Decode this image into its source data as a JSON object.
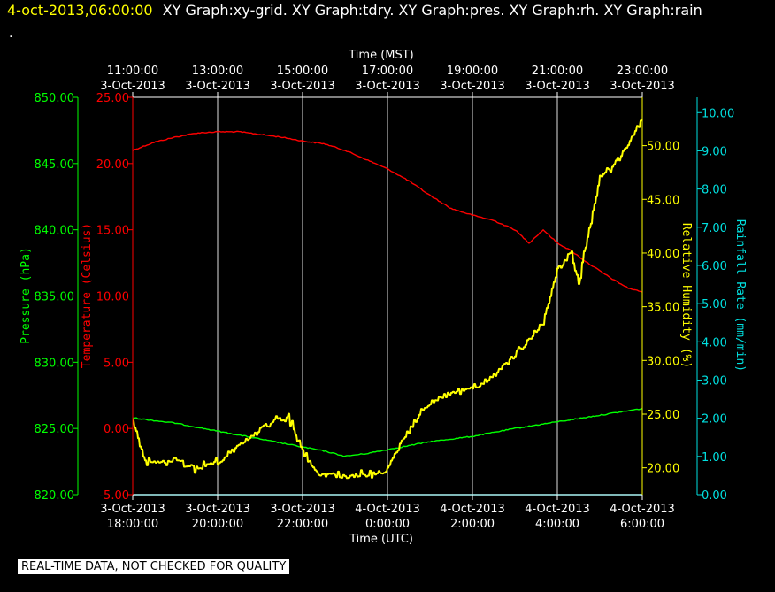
{
  "header": {
    "timestamp": "4-oct-2013,06:00:00",
    "graph_list": "XY Graph:xy-grid.  XY Graph:tdry.  XY Graph:pres.  XY Graph:rh.  XY Graph:rain",
    "dot": "."
  },
  "footer_note": "REAL-TIME DATA, NOT CHECKED FOR QUALITY",
  "colors": {
    "pressure": "#00ff00",
    "temperature": "#ff0000",
    "humidity": "#ffff00",
    "rain": "#00e0e0",
    "grid": "#e0e0e0",
    "text": "#ffffff"
  },
  "chart_data": {
    "type": "line",
    "grid": true,
    "x_top": {
      "title": "Time (MST)",
      "ticks": [
        {
          "time": "11:00:00",
          "date": "3-Oct-2013"
        },
        {
          "time": "13:00:00",
          "date": "3-Oct-2013"
        },
        {
          "time": "15:00:00",
          "date": "3-Oct-2013"
        },
        {
          "time": "17:00:00",
          "date": "3-Oct-2013"
        },
        {
          "time": "19:00:00",
          "date": "3-Oct-2013"
        },
        {
          "time": "21:00:00",
          "date": "3-Oct-2013"
        },
        {
          "time": "23:00:00",
          "date": "3-Oct-2013"
        }
      ]
    },
    "x_bottom": {
      "title": "Time (UTC)",
      "range": [
        "2013-10-03 18:00",
        "2013-10-04 06:00"
      ],
      "ticks": [
        {
          "date": "3-Oct-2013",
          "time": "18:00:00"
        },
        {
          "date": "3-Oct-2013",
          "time": "20:00:00"
        },
        {
          "date": "3-Oct-2013",
          "time": "22:00:00"
        },
        {
          "date": "4-Oct-2013",
          "time": "0:00:00"
        },
        {
          "date": "4-Oct-2013",
          "time": "2:00:00"
        },
        {
          "date": "4-Oct-2013",
          "time": "4:00:00"
        },
        {
          "date": "4-Oct-2013",
          "time": "6:00:00"
        }
      ]
    },
    "axes": {
      "pressure": {
        "label": "Pressure (hPa)",
        "range": [
          820,
          850
        ],
        "ticks": [
          "820.00",
          "825.00",
          "830.00",
          "835.00",
          "840.00",
          "845.00",
          "850.00"
        ]
      },
      "temperature": {
        "label": "Temperature (Celsius)",
        "range": [
          -5,
          25
        ],
        "ticks": [
          "-5.00",
          "0.00",
          "5.00",
          "10.00",
          "15.00",
          "20.00",
          "25.00"
        ]
      },
      "humidity": {
        "label": "Relative Humidity (%)",
        "range": [
          17.5,
          54.5
        ],
        "ticks": [
          "20.00",
          "25.00",
          "30.00",
          "35.00",
          "40.00",
          "45.00",
          "50.00"
        ]
      },
      "rain": {
        "label": "Rainfall Rate (mm/min)",
        "range": [
          0,
          10.4
        ],
        "ticks": [
          "0.00",
          "1.00",
          "2.00",
          "3.00",
          "4.00",
          "5.00",
          "6.00",
          "7.00",
          "8.00",
          "9.00",
          "10.00"
        ]
      }
    },
    "series": [
      {
        "name": "Temperature (Celsius)",
        "axis": "temperature",
        "style": "noisy",
        "x": [
          "2013-10-03 18:00",
          "2013-10-03 18:30",
          "2013-10-03 19:00",
          "2013-10-03 19:30",
          "2013-10-03 20:00",
          "2013-10-03 20:30",
          "2013-10-03 21:00",
          "2013-10-03 21:30",
          "2013-10-03 22:00",
          "2013-10-03 22:30",
          "2013-10-03 23:00",
          "2013-10-03 23:30",
          "2013-10-04 00:00",
          "2013-10-04 00:30",
          "2013-10-04 01:00",
          "2013-10-04 01:30",
          "2013-10-04 02:00",
          "2013-10-04 02:30",
          "2013-10-04 03:00",
          "2013-10-04 03:20",
          "2013-10-04 03:40",
          "2013-10-04 04:00",
          "2013-10-04 04:20",
          "2013-10-04 04:40",
          "2013-10-04 05:00",
          "2013-10-04 05:20",
          "2013-10-04 05:40",
          "2013-10-04 06:00"
        ],
        "values": [
          21.0,
          21.6,
          22.0,
          22.3,
          22.4,
          22.4,
          22.2,
          22.0,
          21.7,
          21.5,
          21.0,
          20.3,
          19.6,
          18.7,
          17.6,
          16.6,
          16.1,
          15.7,
          15.0,
          14.0,
          15.0,
          14.0,
          13.4,
          12.6,
          11.9,
          11.2,
          10.6,
          10.3
        ]
      },
      {
        "name": "Pressure (hPa)",
        "axis": "pressure",
        "style": "noisy",
        "x": [
          "2013-10-03 18:00",
          "2013-10-03 19:00",
          "2013-10-03 20:00",
          "2013-10-03 21:00",
          "2013-10-03 22:00",
          "2013-10-03 22:30",
          "2013-10-03 23:00",
          "2013-10-03 23:30",
          "2013-10-04 00:00",
          "2013-10-04 01:00",
          "2013-10-04 02:00",
          "2013-10-04 03:00",
          "2013-10-04 04:00",
          "2013-10-04 05:00",
          "2013-10-04 06:00"
        ],
        "values": [
          825.8,
          825.4,
          824.8,
          824.2,
          823.6,
          823.3,
          822.9,
          823.1,
          823.4,
          824.0,
          824.4,
          825.0,
          825.5,
          826.0,
          826.5
        ]
      },
      {
        "name": "Relative Humidity (%)",
        "axis": "humidity",
        "style": "jagged",
        "x": [
          "2013-10-03 18:00",
          "2013-10-03 18:15",
          "2013-10-03 18:30",
          "2013-10-03 19:00",
          "2013-10-03 19:30",
          "2013-10-03 20:00",
          "2013-10-03 20:30",
          "2013-10-03 21:00",
          "2013-10-03 21:20",
          "2013-10-03 21:40",
          "2013-10-03 22:00",
          "2013-10-03 22:20",
          "2013-10-03 22:40",
          "2013-10-03 23:00",
          "2013-10-03 23:30",
          "2013-10-04 00:00",
          "2013-10-04 00:20",
          "2013-10-04 00:40",
          "2013-10-04 01:00",
          "2013-10-04 01:30",
          "2013-10-04 02:00",
          "2013-10-04 02:30",
          "2013-10-04 03:00",
          "2013-10-04 03:20",
          "2013-10-04 03:40",
          "2013-10-04 04:00",
          "2013-10-04 04:20",
          "2013-10-04 04:30",
          "2013-10-04 04:40",
          "2013-10-04 05:00",
          "2013-10-04 05:30",
          "2013-10-04 06:00"
        ],
        "values": [
          24.5,
          21.0,
          20.5,
          20.8,
          20.0,
          20.5,
          22.0,
          23.5,
          24.5,
          24.5,
          21.5,
          19.5,
          19.3,
          19.2,
          19.3,
          19.8,
          22.5,
          24.5,
          26.0,
          27.0,
          27.5,
          28.5,
          30.5,
          32.0,
          33.5,
          38.5,
          40.0,
          37.0,
          40.5,
          47.0,
          49.0,
          52.5
        ]
      },
      {
        "name": "Rainfall Rate (mm/min)",
        "axis": "rain",
        "style": "smooth",
        "x": [
          "2013-10-03 18:00",
          "2013-10-04 06:00"
        ],
        "values": [
          0,
          0
        ]
      }
    ]
  }
}
